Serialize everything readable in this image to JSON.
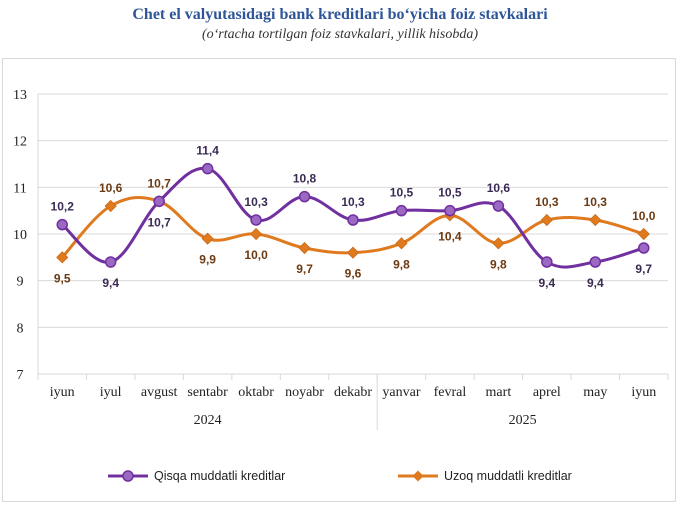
{
  "chart_data": {
    "type": "line",
    "title": "Chet el valyutasidagi bank kreditlari bo‘yicha foiz stavkalari",
    "subtitle": "(o‘rtacha tortilgan foiz stavkalari, yillik hisobda)",
    "categories": [
      "iyun",
      "iyul",
      "avgust",
      "sentabr",
      "oktabr",
      "noyabr",
      "dekabr",
      "yanvar",
      "fevral",
      "mart",
      "aprel",
      "may",
      "iyun"
    ],
    "year_groups": [
      {
        "label": "2024",
        "from": 0,
        "to": 6
      },
      {
        "label": "2025",
        "from": 7,
        "to": 12
      }
    ],
    "ylim": [
      7,
      13
    ],
    "yticks": [
      "7",
      "8",
      "9",
      "10",
      "11",
      "12",
      "13"
    ],
    "grid": true,
    "legend_position": "bottom",
    "series": [
      {
        "name": "Qisqa muddatli kreditlar",
        "color": "#7030a0",
        "values": [
          10.2,
          9.4,
          10.7,
          11.4,
          10.3,
          10.8,
          10.3,
          10.5,
          10.5,
          10.6,
          9.4,
          9.4,
          9.7
        ],
        "labels": [
          "10,2",
          "9,4",
          "10,7",
          "11,4",
          "10,3",
          "10,8",
          "10,3",
          "10,5",
          "10,5",
          "10,6",
          "9,4",
          "9,4",
          "9,7"
        ]
      },
      {
        "name": "Uzoq muddatli kreditlar",
        "color": "#e07a1f",
        "values": [
          9.5,
          10.6,
          10.7,
          9.9,
          10.0,
          9.7,
          9.6,
          9.8,
          10.4,
          9.8,
          10.3,
          10.3,
          10.0
        ],
        "labels": [
          "9,5",
          "10,6",
          "10,7",
          "9,9",
          "10,0",
          "9,7",
          "9,6",
          "9,8",
          "10,4",
          "9,8",
          "10,3",
          "10,3",
          "10,0"
        ]
      }
    ]
  }
}
